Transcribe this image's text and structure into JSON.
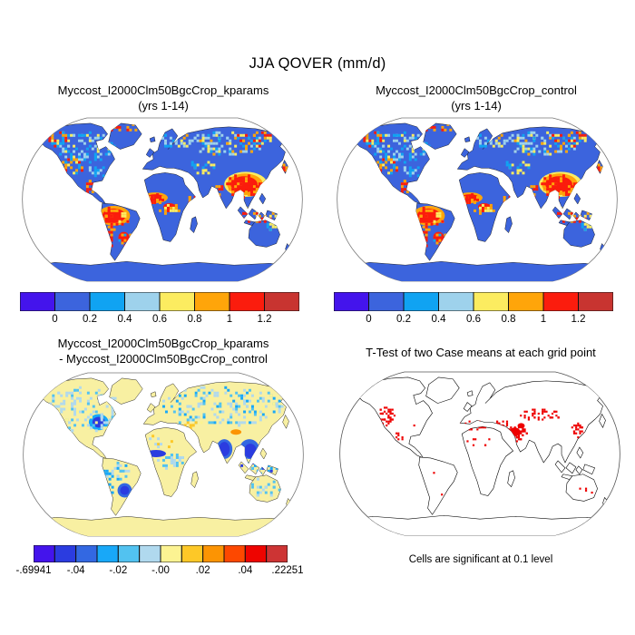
{
  "figure": {
    "title": "JJA QOVER (mm/d)",
    "variable": "QOVER",
    "season": "JJA",
    "units": "mm/d"
  },
  "panels": {
    "kparams": {
      "title": "Myccost_I2000Clm50BgcCrop_kparams",
      "subtitle": "(yrs 1-14)"
    },
    "control": {
      "title": "Myccost_I2000Clm50BgcCrop_control",
      "subtitle": "(yrs 1-14)"
    },
    "diff": {
      "title": "Myccost_I2000Clm50BgcCrop_kparams",
      "subtitle": "- Myccost_I2000Clm50BgcCrop_control"
    },
    "ttest": {
      "title": "T-Test of two Case means at each grid point",
      "caption": "Cells are significant at 0.1 level",
      "marker_color": "#ee0000"
    }
  },
  "colorbar_top": {
    "colors": [
      "#4414ec",
      "#3c64dd",
      "#10a3f2",
      "#9ed2ec",
      "#fcec60",
      "#ffa50a",
      "#fb1c0d",
      "#c83430"
    ],
    "labels": [
      "0",
      "0.2",
      "0.4",
      "0.6",
      "0.8",
      "1",
      "1.2"
    ]
  },
  "colorbar_diff": {
    "colors": [
      "#4414ec",
      "#2b3ce0",
      "#3368e2",
      "#18a8f8",
      "#52c2f0",
      "#b0d9ee",
      "#fcf392",
      "#fdc827",
      "#fc9403",
      "#fd4800",
      "#ee0400",
      "#cd3434"
    ],
    "labels": [
      "-.69941",
      "-.04",
      "-.02",
      "-.00",
      ".02",
      ".04",
      ".22251"
    ]
  },
  "map_style": {
    "ocean": "#ffffff",
    "outline_stroke": "#777777",
    "coast_stroke": "#101010",
    "land_base_top": "#3c64dd",
    "land_base_diff": "#f8f0a2"
  },
  "chart_data": [
    {
      "type": "heatmap",
      "title": "Myccost_I2000Clm50BgcCrop_kparams (yrs 1-14)",
      "variable": "JJA QOVER (mm/d)",
      "projection": "Robinson global map",
      "colorbar_ticks": [
        0,
        0.2,
        0.4,
        0.6,
        0.8,
        1,
        1.2
      ],
      "palette": [
        "#4414ec",
        "#3c64dd",
        "#10a3f2",
        "#9ed2ec",
        "#fcec60",
        "#ffa50a",
        "#fb1c0d",
        "#c83430"
      ],
      "legend_position": "below",
      "notes": "Land-only raster; oceans white; most land 0-0.2 (blue); high runoff (red >1.2) over Amazon, West Africa, South/Southeast Asia, Indonesia; speckled 0.4-0.8 over high northern latitudes; Antarctica uniform 0-0.2"
    },
    {
      "type": "heatmap",
      "title": "Myccost_I2000Clm50BgcCrop_control (yrs 1-14)",
      "variable": "JJA QOVER (mm/d)",
      "projection": "Robinson global map",
      "colorbar_ticks": [
        0,
        0.2,
        0.4,
        0.6,
        0.8,
        1,
        1.2
      ],
      "palette": [
        "#4414ec",
        "#3c64dd",
        "#10a3f2",
        "#9ed2ec",
        "#fcec60",
        "#ffa50a",
        "#fb1c0d",
        "#c83430"
      ],
      "legend_position": "below",
      "notes": "Visually identical pattern to kparams case"
    },
    {
      "type": "heatmap",
      "title": "Myccost_I2000Clm50BgcCrop_kparams - Myccost_I2000Clm50BgcCrop_control",
      "variable": "JJA QOVER difference (mm/d)",
      "projection": "Robinson global map",
      "range": [
        -0.69941,
        0.22251
      ],
      "colorbar_tick_labels": [
        "-.69941",
        "-.04",
        "-.02",
        "-.00",
        ".02",
        ".04",
        ".22251"
      ],
      "palette": [
        "#4414ec",
        "#2b3ce0",
        "#3368e2",
        "#18a8f8",
        "#52c2f0",
        "#b0d9ee",
        "#fcf392",
        "#fdc827",
        "#fc9403",
        "#fd4800",
        "#ee0400",
        "#cd3434"
      ],
      "legend_position": "below",
      "notes": "Mostly near-zero pale yellow / weak negative light blue; strong negative (deep blue) over eastern US, West Africa, India, Southeast Asia, southern Brazil; small positive (orange) spot near Tibetan Plateau; Antarctica pale yellow"
    },
    {
      "type": "map",
      "title": "T-Test of two Case means at each grid point",
      "annotation": "Cells are significant at 0.1 level",
      "marker_color": "#ee0000",
      "notes": "Coastline outline map; red significant cells clustered over western US, Mediterranean rim, Middle East, central Asia, eastern China; sparse elsewhere"
    }
  ]
}
